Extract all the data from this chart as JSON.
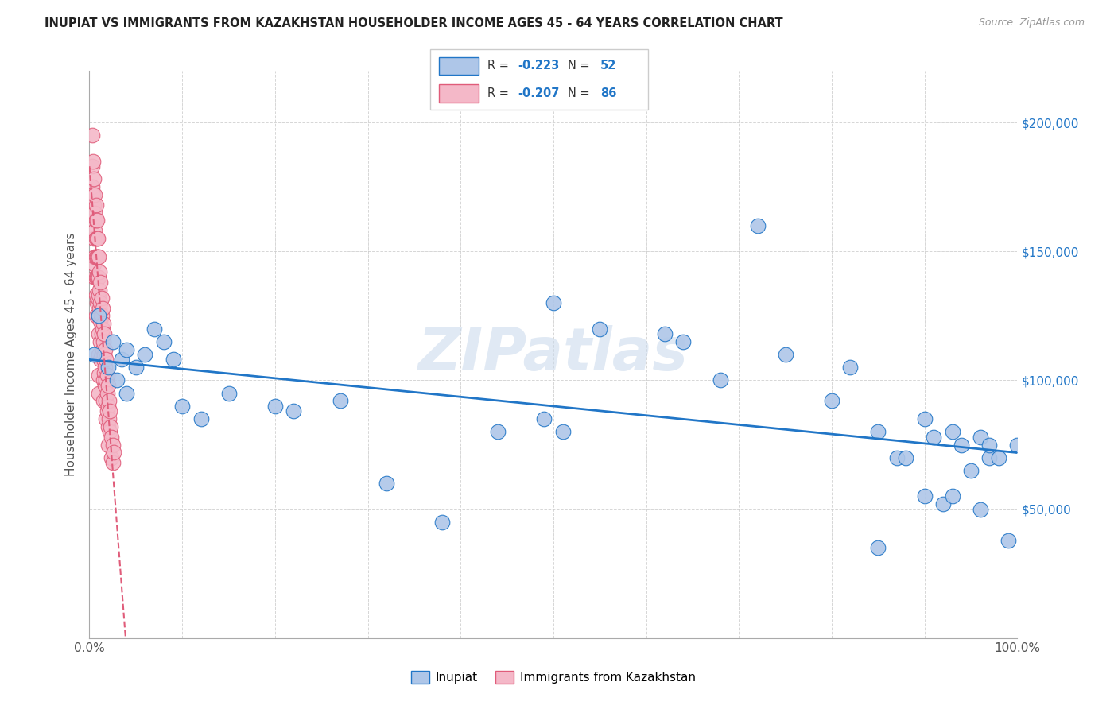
{
  "title": "INUPIAT VS IMMIGRANTS FROM KAZAKHSTAN HOUSEHOLDER INCOME AGES 45 - 64 YEARS CORRELATION CHART",
  "source": "Source: ZipAtlas.com",
  "ylabel": "Householder Income Ages 45 - 64 years",
  "xlim": [
    0,
    1.0
  ],
  "ylim": [
    0,
    220000
  ],
  "xticks": [
    0.0,
    0.1,
    0.2,
    0.3,
    0.4,
    0.5,
    0.6,
    0.7,
    0.8,
    0.9,
    1.0
  ],
  "xticklabels": [
    "0.0%",
    "",
    "",
    "",
    "",
    "",
    "",
    "",
    "",
    "",
    "100.0%"
  ],
  "yticks": [
    0,
    50000,
    100000,
    150000,
    200000
  ],
  "yticklabels": [
    "",
    "$50,000",
    "$100,000",
    "$150,000",
    "$200,000"
  ],
  "blue_color": "#aec6e8",
  "pink_color": "#f4b8c8",
  "blue_line_color": "#2176c7",
  "pink_line_color": "#e05c7a",
  "watermark": "ZIPatlas",
  "inupiat_x": [
    0.005,
    0.01,
    0.02,
    0.025,
    0.03,
    0.035,
    0.04,
    0.04,
    0.05,
    0.06,
    0.07,
    0.08,
    0.09,
    0.1,
    0.12,
    0.15,
    0.2,
    0.22,
    0.27,
    0.32,
    0.38,
    0.44,
    0.49,
    0.5,
    0.51,
    0.55,
    0.62,
    0.64,
    0.68,
    0.72,
    0.75,
    0.8,
    0.82,
    0.85,
    0.85,
    0.87,
    0.88,
    0.9,
    0.9,
    0.91,
    0.92,
    0.93,
    0.93,
    0.94,
    0.95,
    0.96,
    0.96,
    0.97,
    0.97,
    0.98,
    0.99,
    1.0
  ],
  "inupiat_y": [
    110000,
    125000,
    105000,
    115000,
    100000,
    108000,
    112000,
    95000,
    105000,
    110000,
    120000,
    115000,
    108000,
    90000,
    85000,
    95000,
    90000,
    88000,
    92000,
    60000,
    45000,
    80000,
    85000,
    130000,
    80000,
    120000,
    118000,
    115000,
    100000,
    160000,
    110000,
    92000,
    105000,
    80000,
    35000,
    70000,
    70000,
    85000,
    55000,
    78000,
    52000,
    80000,
    55000,
    75000,
    65000,
    78000,
    50000,
    70000,
    75000,
    70000,
    38000,
    75000
  ],
  "kaz_x": [
    0.003,
    0.003,
    0.003,
    0.004,
    0.004,
    0.005,
    0.005,
    0.005,
    0.005,
    0.005,
    0.006,
    0.006,
    0.006,
    0.006,
    0.006,
    0.007,
    0.007,
    0.007,
    0.007,
    0.007,
    0.007,
    0.007,
    0.008,
    0.008,
    0.008,
    0.008,
    0.008,
    0.009,
    0.009,
    0.009,
    0.009,
    0.01,
    0.01,
    0.01,
    0.01,
    0.01,
    0.01,
    0.01,
    0.01,
    0.011,
    0.011,
    0.011,
    0.012,
    0.012,
    0.012,
    0.012,
    0.012,
    0.013,
    0.013,
    0.013,
    0.013,
    0.014,
    0.014,
    0.014,
    0.015,
    0.015,
    0.015,
    0.015,
    0.015,
    0.016,
    0.016,
    0.016,
    0.017,
    0.017,
    0.017,
    0.018,
    0.018,
    0.018,
    0.018,
    0.019,
    0.019,
    0.019,
    0.02,
    0.02,
    0.02,
    0.02,
    0.021,
    0.021,
    0.022,
    0.022,
    0.023,
    0.024,
    0.024,
    0.025,
    0.025,
    0.026
  ],
  "kaz_y": [
    195000,
    183000,
    175000,
    185000,
    172000,
    178000,
    168000,
    162000,
    155000,
    145000,
    172000,
    165000,
    158000,
    148000,
    140000,
    168000,
    162000,
    155000,
    148000,
    140000,
    133000,
    125000,
    162000,
    155000,
    148000,
    140000,
    130000,
    155000,
    148000,
    140000,
    132000,
    148000,
    140000,
    133000,
    125000,
    118000,
    110000,
    102000,
    95000,
    142000,
    135000,
    128000,
    138000,
    130000,
    123000,
    115000,
    108000,
    132000,
    125000,
    118000,
    110000,
    128000,
    120000,
    112000,
    122000,
    115000,
    108000,
    100000,
    92000,
    118000,
    110000,
    103000,
    112000,
    105000,
    98000,
    108000,
    100000,
    92000,
    85000,
    102000,
    95000,
    88000,
    98000,
    90000,
    82000,
    75000,
    92000,
    85000,
    88000,
    80000,
    82000,
    78000,
    70000,
    75000,
    68000,
    72000
  ]
}
